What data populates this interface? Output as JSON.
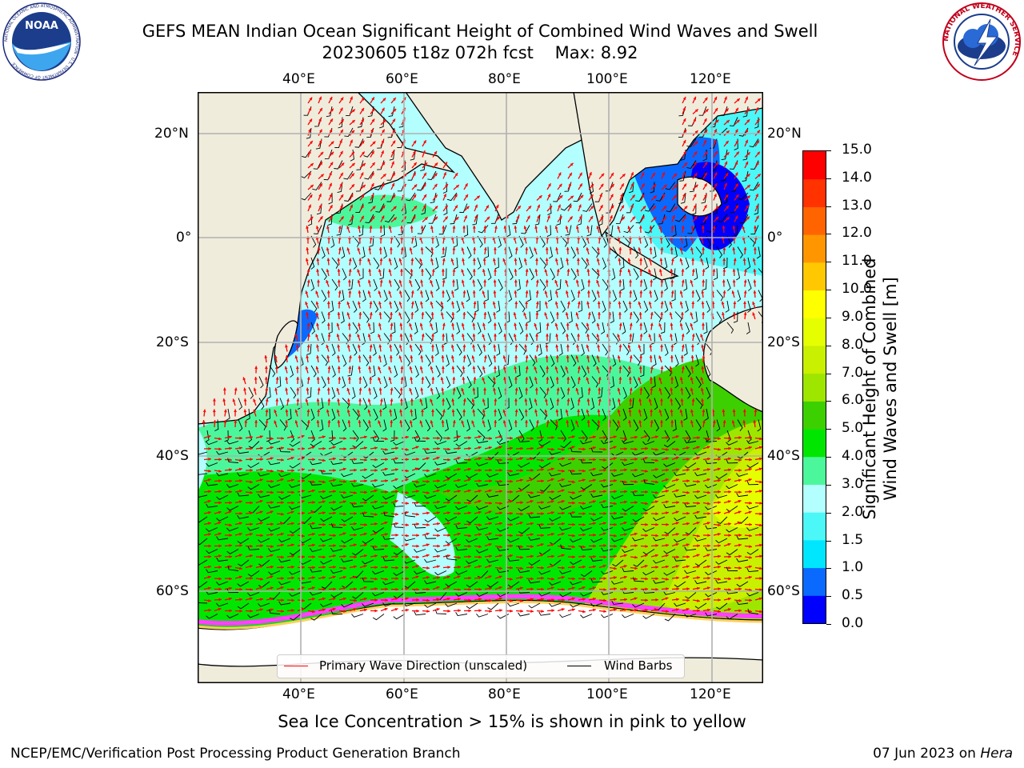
{
  "header": {
    "title_line1": "GEFS MEAN Indian Ocean Significant Height of Combined Wind Waves and Swell",
    "title_line2": "20230605 t18z 072h fcst    Max: 8.92"
  },
  "logos": {
    "left": {
      "text": "NOAA",
      "ring_text": "NATIONAL OCEANIC AND ATMOSPHERIC ADMINISTRATION · U.S. DEPARTMENT OF COMMERCE"
    },
    "right": {
      "ring_text": "NATIONAL WEATHER SERVICE"
    }
  },
  "map": {
    "lon_ticks_top": [
      "40°E",
      "60°E",
      "80°E",
      "100°E",
      "120°E"
    ],
    "lon_ticks_bottom": [
      "40°E",
      "60°E",
      "80°E",
      "100°E",
      "120°E"
    ],
    "lat_ticks_left": [
      "20°N",
      "0°",
      "20°S",
      "40°S",
      "60°S"
    ],
    "lat_ticks_right": [
      "20°N",
      "0°",
      "20°S",
      "40°S",
      "60°S"
    ],
    "legend": {
      "wave_label": "Primary Wave Direction (unscaled)",
      "barb_label": "Wind Barbs",
      "wave_color": "#ff0000",
      "barb_color": "#000000"
    },
    "colors": {
      "land": "#efecdc",
      "ice_land": "#ffffff",
      "grid": "#b0b0b0"
    }
  },
  "colorbar": {
    "label_line1": "Significant Height of Combined",
    "label_line2": "Wind Waves and Swell [m]",
    "ticks": [
      "0.0",
      "0.5",
      "1.0",
      "1.5",
      "2.0",
      "3.0",
      "4.0",
      "5.0",
      "6.0",
      "7.0",
      "8.0",
      "9.0",
      "10.0",
      "11.0",
      "12.0",
      "13.0",
      "14.0",
      "15.0"
    ],
    "colors": [
      "#0000ff",
      "#0a6aff",
      "#00e6ff",
      "#4cf7f7",
      "#b3ffff",
      "#4cf79c",
      "#00e600",
      "#3dd000",
      "#9ee600",
      "#c8f000",
      "#e6ff00",
      "#ffff00",
      "#ffc800",
      "#ff9600",
      "#ff6400",
      "#ff3200",
      "#ff0000"
    ]
  },
  "caption": "Sea Ice Concentration > 15% is shown in pink to yellow",
  "footer": {
    "left": "NCEP/EMC/Verification Post Processing Product Generation Branch",
    "right_date": "07 Jun 2023 on ",
    "right_host": "Hera"
  }
}
